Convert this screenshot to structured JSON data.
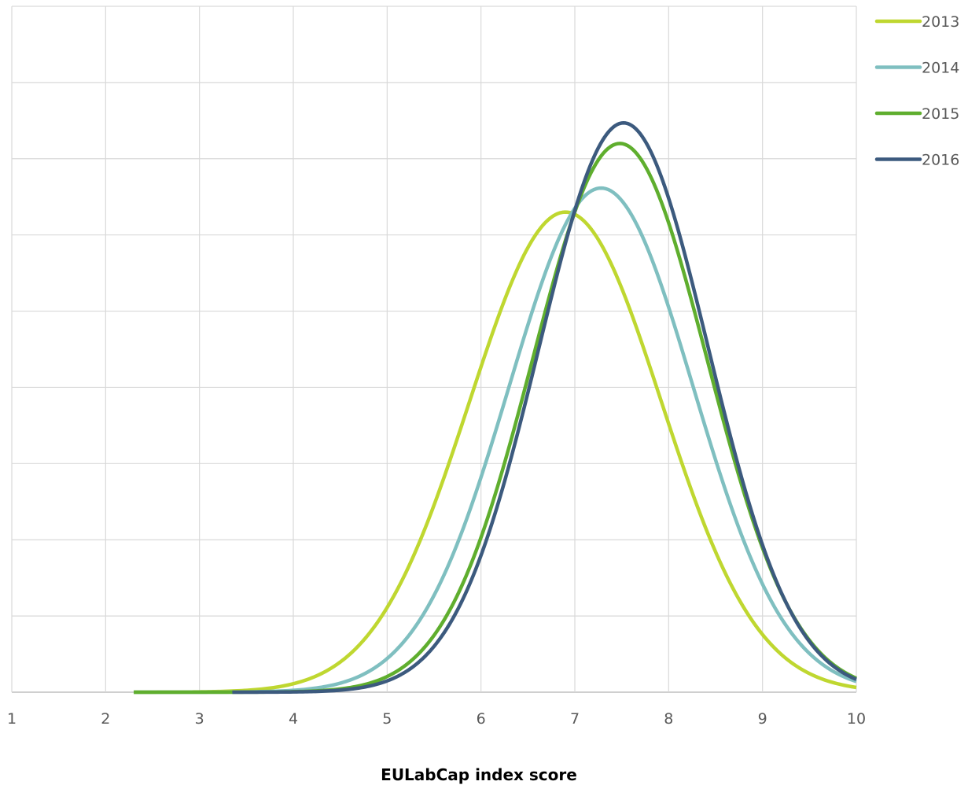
{
  "chart_data": {
    "type": "line",
    "title": "",
    "xlabel": "EULabCap index score",
    "ylabel": "",
    "xlim": [
      1,
      10
    ],
    "xticks": [
      "1",
      "2",
      "3",
      "4",
      "5",
      "6",
      "7",
      "8",
      "9",
      "10"
    ],
    "y_gridlines": 9,
    "grid": true,
    "legend_position": "top-right",
    "series": [
      {
        "name": "2013",
        "color": "#bfd730",
        "mean": 6.9,
        "sd": 1.02,
        "x_start": 2.3,
        "x_end": 10,
        "peak_fraction": 0.7
      },
      {
        "name": "2014",
        "color": "#7fbfc0",
        "mean": 7.28,
        "sd": 0.98,
        "x_start": 2.3,
        "x_end": 10,
        "peak_fraction": 0.735
      },
      {
        "name": "2015",
        "color": "#5fae2e",
        "mean": 7.48,
        "sd": 0.93,
        "x_start": 2.3,
        "x_end": 10,
        "peak_fraction": 0.8
      },
      {
        "name": "2016",
        "color": "#3c5a7e",
        "mean": 7.52,
        "sd": 0.9,
        "x_start": 3.35,
        "x_end": 10,
        "peak_fraction": 0.83
      }
    ]
  }
}
